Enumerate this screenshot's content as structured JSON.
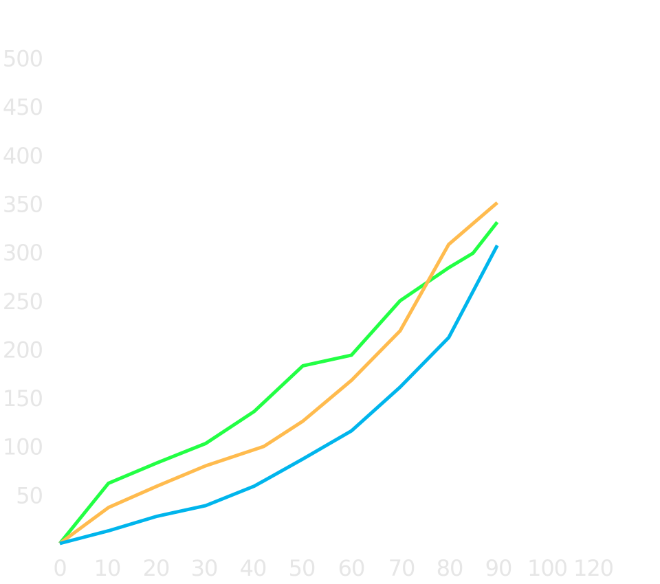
{
  "chart_data": {
    "type": "line",
    "title": "",
    "xlabel": "",
    "ylabel": "",
    "xlim": [
      0,
      120
    ],
    "ylim": [
      0,
      500
    ],
    "x_ticks": [
      "0",
      "10",
      "20",
      "30",
      "40",
      "50",
      "60",
      "70",
      "80",
      "90",
      "100",
      "120"
    ],
    "y_ticks": [
      "50",
      "100",
      "150",
      "200",
      "250",
      "300",
      "350",
      "400",
      "450",
      "500"
    ],
    "grid": false,
    "legend": "none",
    "series": [
      {
        "color": "#22ff44",
        "points": [
          [
            0,
            0
          ],
          [
            10,
            62
          ],
          [
            20,
            83
          ],
          [
            30,
            103
          ],
          [
            40,
            136
          ],
          [
            50,
            183
          ],
          [
            60,
            194
          ],
          [
            70,
            250
          ],
          [
            80,
            284
          ],
          [
            85,
            299
          ],
          [
            90,
            331
          ]
        ]
      },
      {
        "color": "#ffbb4e",
        "points": [
          [
            0,
            0
          ],
          [
            10,
            37
          ],
          [
            20,
            59
          ],
          [
            30,
            80
          ],
          [
            42,
            100
          ],
          [
            50,
            126
          ],
          [
            60,
            168
          ],
          [
            70,
            219
          ],
          [
            80,
            308
          ],
          [
            90,
            351
          ]
        ]
      },
      {
        "color": "#00b5ec",
        "points": [
          [
            0,
            0
          ],
          [
            10,
            13
          ],
          [
            20,
            28
          ],
          [
            30,
            39
          ],
          [
            40,
            59
          ],
          [
            50,
            87
          ],
          [
            60,
            116
          ],
          [
            70,
            161
          ],
          [
            80,
            212
          ],
          [
            90,
            307
          ]
        ]
      }
    ]
  }
}
